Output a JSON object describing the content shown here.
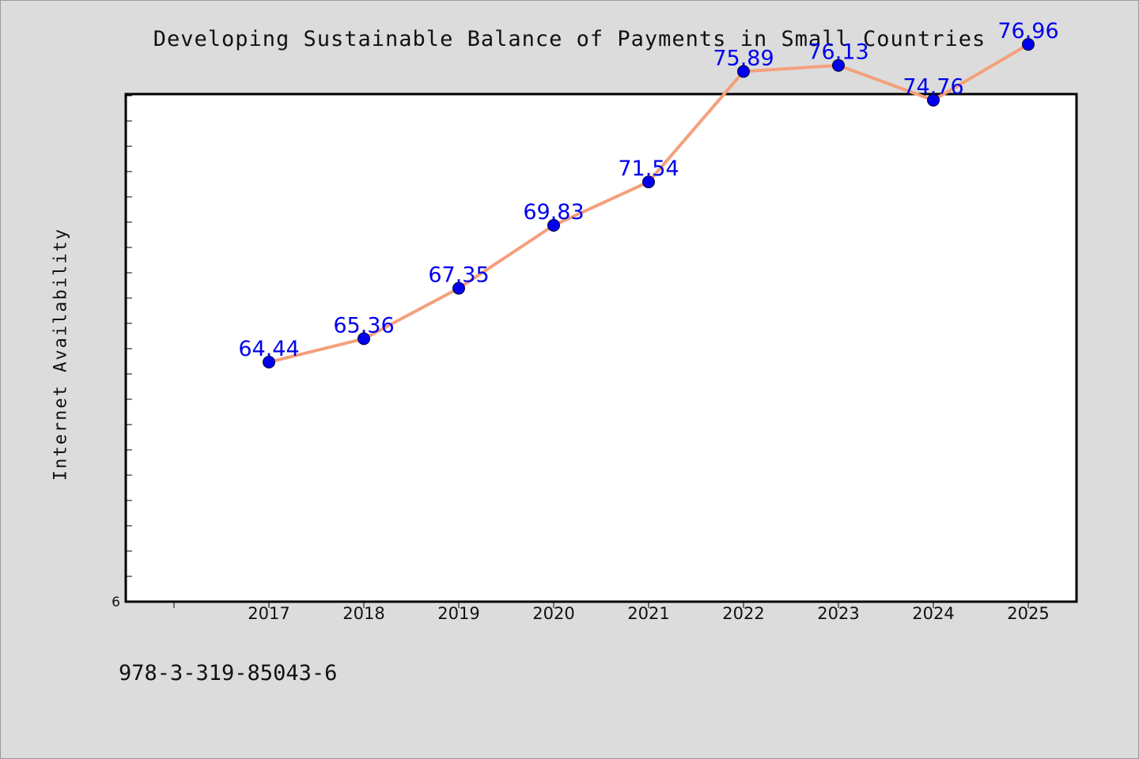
{
  "page": {
    "isbn": "978-3-319-85043-6"
  },
  "colors": {
    "background": "#dcdcdc",
    "plot_background": "#ffffff",
    "line": "#f4a07c",
    "marker": "#0000ee",
    "data_label": "#0000ee",
    "axis": "#000000"
  },
  "chart_data": {
    "type": "line",
    "title": "Developing Sustainable Balance of Payments in Small Countries",
    "xlabel": "",
    "ylabel": "Internet Availability",
    "categories": [
      "2017",
      "2018",
      "2019",
      "2020",
      "2021",
      "2022",
      "2023",
      "2024",
      "2025"
    ],
    "series": [
      {
        "values": [
          64.44,
          65.36,
          67.35,
          69.83,
          71.54,
          75.89,
          76.13,
          74.76,
          76.96
        ],
        "data_labels": [
          "64.44",
          "65.36",
          "67.35",
          "69.83",
          "71.54",
          "75.89",
          "76.13",
          "74.76",
          "76.96"
        ]
      }
    ],
    "ylim": [
      55,
      75
    ],
    "y_tick_labels": [
      "6"
    ],
    "grid": false,
    "legend": "none"
  }
}
